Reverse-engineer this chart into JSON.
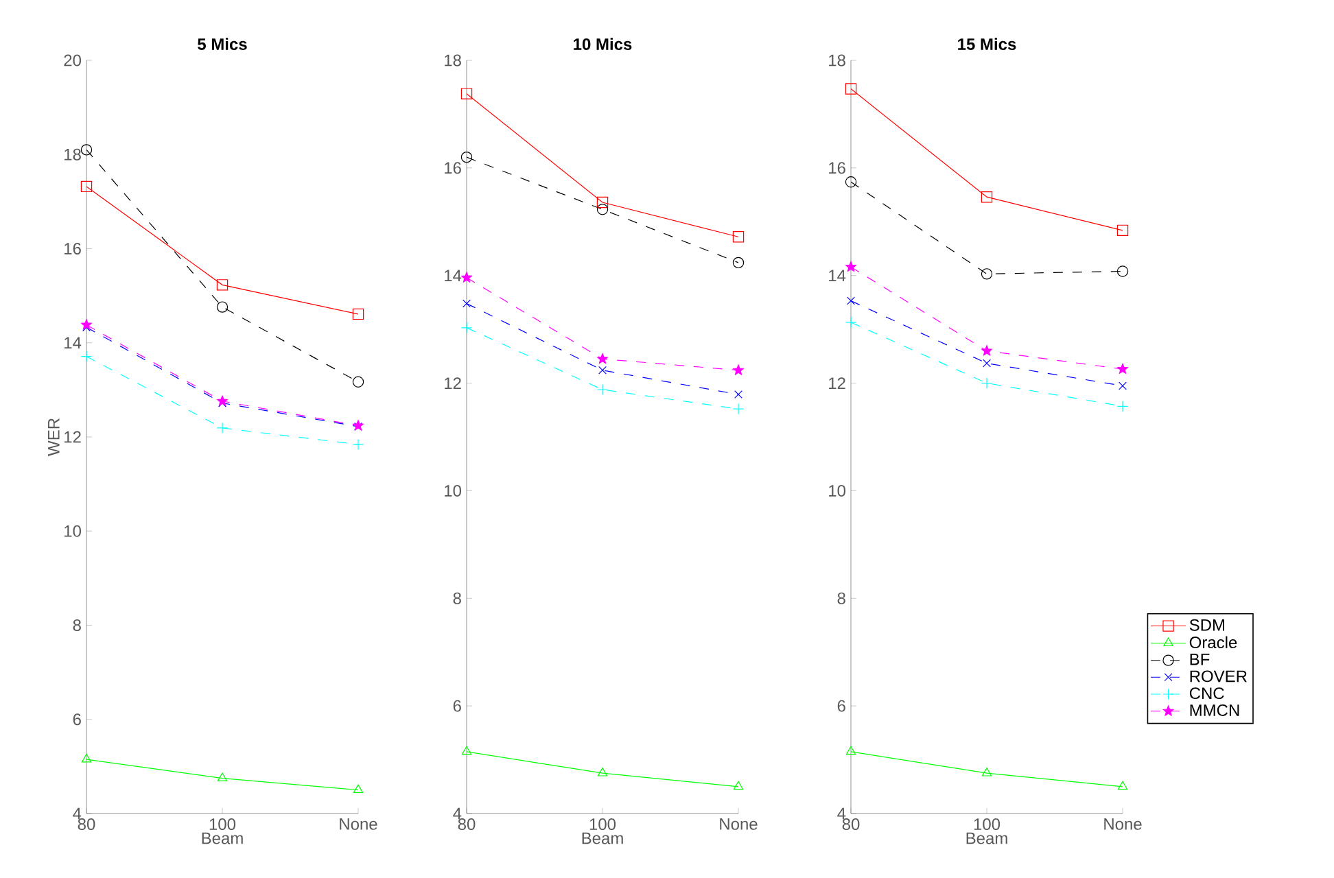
{
  "chart_data": [
    {
      "type": "line",
      "title": "5 Mics",
      "xlabel": "Beam",
      "ylabel": "WER",
      "categories": [
        "80",
        "100",
        "None"
      ],
      "ylim": [
        4,
        20
      ],
      "yticks": [
        4,
        6,
        8,
        10,
        12,
        14,
        16,
        18,
        20
      ],
      "grid": false,
      "legend": false,
      "series": [
        {
          "color": "#ff0000",
          "marker": "square",
          "line_style": "solid",
          "values": [
            17.32,
            15.23,
            14.61
          ]
        },
        {
          "color": "#00ff00",
          "marker": "triangle",
          "line_style": "solid",
          "values": [
            5.15,
            4.75,
            4.5
          ]
        },
        {
          "color": "#000000",
          "marker": "circle",
          "line_style": "dashed",
          "values": [
            18.1,
            14.76,
            13.17
          ]
        },
        {
          "color": "#0000ff",
          "marker": "cross",
          "line_style": "dashed",
          "values": [
            14.33,
            12.72,
            12.22
          ]
        },
        {
          "color": "#00ffff",
          "marker": "plus",
          "line_style": "dashed",
          "values": [
            13.71,
            12.19,
            11.84
          ]
        },
        {
          "color": "#ff00ff",
          "marker": "star",
          "line_style": "dashed",
          "values": [
            14.38,
            12.76,
            12.24
          ]
        }
      ]
    },
    {
      "type": "line",
      "title": "10 Mics",
      "xlabel": "Beam",
      "categories": [
        "80",
        "100",
        "None"
      ],
      "ylim": [
        4,
        18
      ],
      "yticks": [
        4,
        6,
        8,
        10,
        12,
        14,
        16,
        18
      ],
      "grid": false,
      "legend": false,
      "series": [
        {
          "color": "#ff0000",
          "marker": "square",
          "line_style": "solid",
          "values": [
            17.38,
            15.36,
            14.72
          ]
        },
        {
          "color": "#00ff00",
          "marker": "triangle",
          "line_style": "solid",
          "values": [
            5.15,
            4.75,
            4.5
          ]
        },
        {
          "color": "#000000",
          "marker": "circle",
          "line_style": "dashed",
          "values": [
            16.2,
            15.23,
            14.24
          ]
        },
        {
          "color": "#0000ff",
          "marker": "cross",
          "line_style": "dashed",
          "values": [
            13.48,
            12.24,
            11.79
          ]
        },
        {
          "color": "#00ffff",
          "marker": "plus",
          "line_style": "dashed",
          "values": [
            13.03,
            11.88,
            11.52
          ]
        },
        {
          "color": "#ff00ff",
          "marker": "star",
          "line_style": "dashed",
          "values": [
            13.96,
            12.45,
            12.24
          ]
        }
      ]
    },
    {
      "type": "line",
      "title": "15 Mics",
      "xlabel": "Beam",
      "categories": [
        "80",
        "100",
        "None"
      ],
      "ylim": [
        4,
        18
      ],
      "yticks": [
        4,
        6,
        8,
        10,
        12,
        14,
        16,
        18
      ],
      "grid": false,
      "legend": "bottom right",
      "series": [
        {
          "name": "SDM",
          "color": "#ff0000",
          "marker": "square",
          "line_style": "solid",
          "values": [
            17.47,
            15.46,
            14.84
          ]
        },
        {
          "name": "Oracle",
          "color": "#00ff00",
          "marker": "triangle",
          "line_style": "solid",
          "values": [
            5.15,
            4.75,
            4.5
          ]
        },
        {
          "name": "BF",
          "color": "#000000",
          "marker": "circle",
          "line_style": "dashed",
          "values": [
            15.74,
            14.03,
            14.08
          ]
        },
        {
          "name": "ROVER",
          "color": "#0000ff",
          "marker": "cross",
          "line_style": "dashed",
          "values": [
            13.53,
            12.37,
            11.95
          ]
        },
        {
          "name": "CNC",
          "color": "#00ffff",
          "marker": "plus",
          "line_style": "dashed",
          "values": [
            13.13,
            12.0,
            11.57
          ]
        },
        {
          "name": "MMCN",
          "color": "#ff00ff",
          "marker": "star",
          "line_style": "dashed",
          "values": [
            14.16,
            12.6,
            12.26
          ]
        }
      ]
    }
  ]
}
